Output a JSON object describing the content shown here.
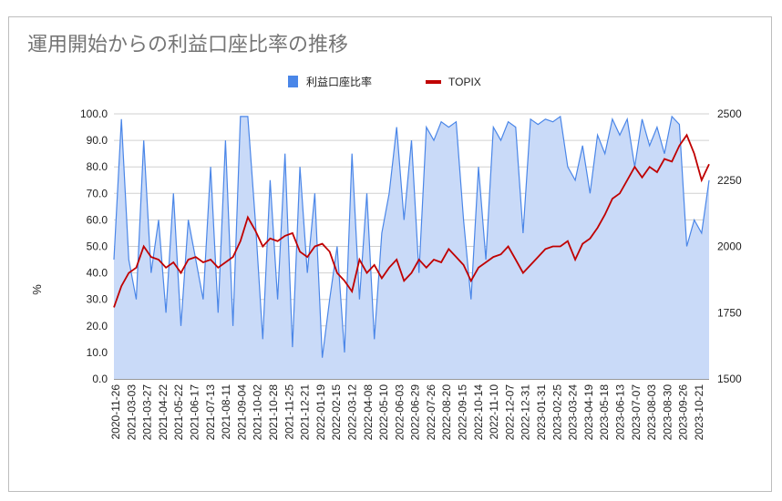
{
  "chart_data": {
    "type": "area+line",
    "title": "運用開始からの利益口座比率の推移",
    "ylabel": "%",
    "ylim": [
      0,
      100
    ],
    "y2lim": [
      1500,
      2500
    ],
    "yticks": [
      "0.0",
      "10.0",
      "20.0",
      "30.0",
      "40.0",
      "50.0",
      "60.0",
      "70.0",
      "80.0",
      "90.0",
      "100.0"
    ],
    "y2ticks": [
      "1500",
      "1750",
      "2000",
      "2250",
      "2500"
    ],
    "grid": true,
    "legend_position": "top",
    "x_tick_labels": [
      "2020-11-26",
      "2021-03-03",
      "2021-03-27",
      "2021-04-22",
      "2021-05-22",
      "2021-06-17",
      "2021-07-13",
      "2021-08-11",
      "2021-09-04",
      "2021-10-02",
      "2021-10-28",
      "2021-11-25",
      "2021-12-21",
      "2022-01-19",
      "2022-02-15",
      "2022-03-12",
      "2022-04-08",
      "2022-05-10",
      "2022-06-03",
      "2022-06-29",
      "2022-07-26",
      "2022-08-20",
      "2022-09-15",
      "2022-10-14",
      "2022-11-10",
      "2022-12-07",
      "2022-12-31",
      "2023-01-31",
      "2023-02-25",
      "2023-03-24",
      "2023-04-19",
      "2023-05-18",
      "2023-06-13",
      "2023-07-07",
      "2023-08-03",
      "2023-08-30",
      "2023-09-26",
      "2023-10-21"
    ],
    "series": [
      {
        "name": "利益口座比率",
        "type": "area",
        "axis": "left",
        "color": "#4a86e8",
        "fill": "#c9daf8",
        "values": [
          45,
          98,
          45,
          30,
          90,
          40,
          60,
          25,
          70,
          20,
          60,
          45,
          30,
          80,
          25,
          90,
          20,
          99,
          99,
          60,
          15,
          75,
          30,
          85,
          12,
          80,
          40,
          70,
          8,
          30,
          50,
          10,
          85,
          30,
          70,
          15,
          55,
          70,
          95,
          60,
          90,
          40,
          95,
          90,
          97,
          95,
          97,
          60,
          30,
          80,
          45,
          95,
          90,
          97,
          95,
          55,
          98,
          96,
          98,
          97,
          99,
          80,
          75,
          88,
          70,
          92,
          85,
          98,
          92,
          98,
          80,
          98,
          88,
          95,
          85,
          99,
          96,
          50,
          60,
          55,
          75
        ]
      },
      {
        "name": "TOPIX",
        "type": "line",
        "axis": "right",
        "color": "#c00000",
        "values": [
          1770,
          1850,
          1900,
          1920,
          2000,
          1960,
          1950,
          1920,
          1940,
          1900,
          1950,
          1960,
          1940,
          1950,
          1920,
          1940,
          1960,
          2020,
          2110,
          2060,
          2000,
          2030,
          2020,
          2040,
          2050,
          1980,
          1960,
          2000,
          2010,
          1980,
          1900,
          1870,
          1830,
          1950,
          1900,
          1930,
          1880,
          1920,
          1950,
          1870,
          1900,
          1950,
          1920,
          1950,
          1940,
          1990,
          1960,
          1930,
          1870,
          1920,
          1940,
          1960,
          1970,
          2000,
          1950,
          1900,
          1930,
          1960,
          1990,
          2000,
          2000,
          2020,
          1950,
          2010,
          2030,
          2070,
          2120,
          2180,
          2200,
          2250,
          2300,
          2260,
          2300,
          2280,
          2330,
          2320,
          2380,
          2420,
          2350,
          2250,
          2310
        ]
      }
    ]
  }
}
